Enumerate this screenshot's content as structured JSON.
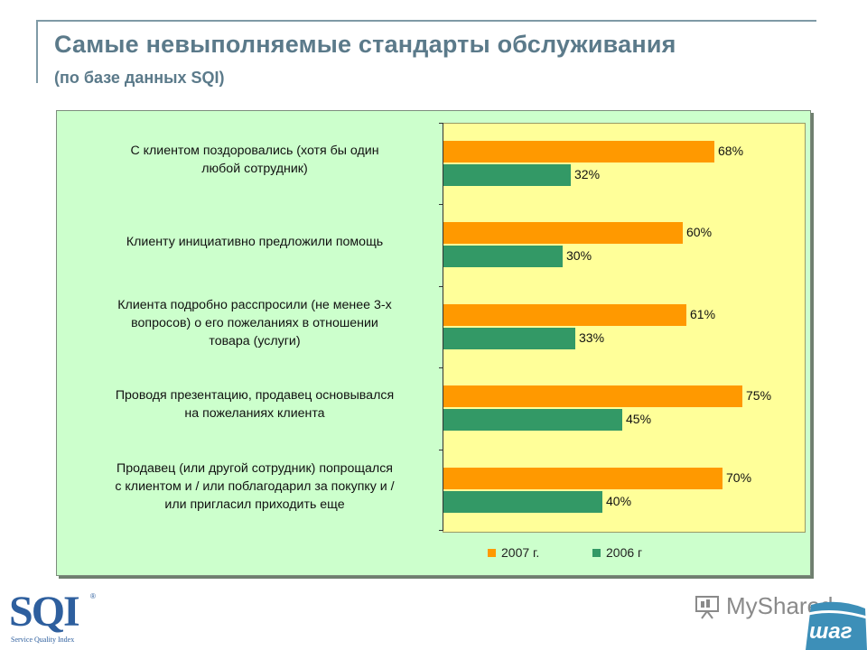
{
  "slide": {
    "title": "Самые невыполняемые стандарты обслуживания",
    "subtitle": "(по базе данных SQI)"
  },
  "chart_data": {
    "type": "bar",
    "orientation": "horizontal",
    "categories": [
      [
        "С клиентом поздоровались (хотя бы один",
        "любой сотрудник)"
      ],
      [
        "Клиенту инициативно предложили помощь"
      ],
      [
        "Клиента подробно расспросили (не менее 3-х",
        "вопросов) о его пожеланиях в отношении",
        "товара (услуги)"
      ],
      [
        "Проводя презентацию, продавец основывался",
        "на пожеланиях клиента"
      ],
      [
        "Продавец (или другой сотрудник) попрощался",
        "с клиентом и / или поблагодарил за покупку и /",
        "или пригласил приходить еще"
      ]
    ],
    "series": [
      {
        "name": "2007 г.",
        "color": "#ff9900",
        "values": [
          68,
          60,
          61,
          75,
          70
        ]
      },
      {
        "name": "2006 г",
        "color": "#339966",
        "values": [
          32,
          30,
          33,
          45,
          40
        ]
      }
    ],
    "value_format": "percent",
    "xlim": [
      0,
      90
    ],
    "legend": "bottom",
    "grid": false
  },
  "logos": {
    "sqi": "SQI",
    "sqi_sub": "Service Quality Index",
    "sqi_reg": "®",
    "watermark": "MyShared",
    "shag": "шаг"
  },
  "icons": {
    "watermark_icon": "presentation-icon"
  }
}
